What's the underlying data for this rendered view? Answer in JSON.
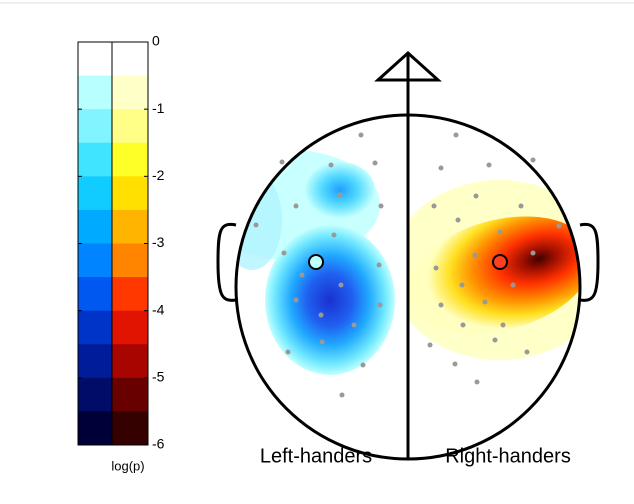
{
  "chart_data": {
    "type": "topomap",
    "ylim": [
      -6,
      0
    ],
    "yticks": [
      0,
      -1,
      -2,
      -3,
      -4,
      -5,
      -6
    ],
    "ylabel": "log(p)",
    "panels": [
      "Left-handers",
      "Right-handers"
    ]
  }
}
